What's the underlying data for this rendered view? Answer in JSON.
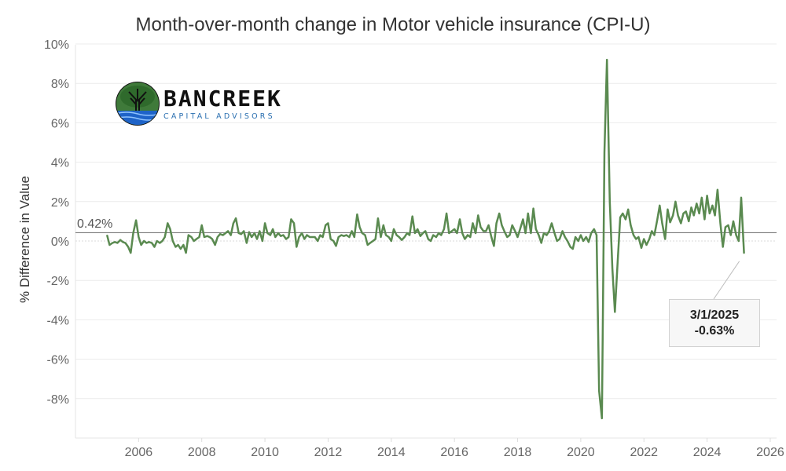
{
  "chart_data": {
    "type": "line",
    "title": "Month-over-month change in Motor vehicle insurance (CPI-U)",
    "ylabel": "% Difference in Value",
    "xlabel": "",
    "x_range": [
      2004.0,
      2026.2
    ],
    "ylim": [
      -10,
      10
    ],
    "y_ticks": [
      10,
      8,
      6,
      4,
      2,
      0,
      -2,
      -4,
      -6,
      -8
    ],
    "y_tick_labels": [
      "10%",
      "8%",
      "6%",
      "4%",
      "2%",
      "0%",
      "-2%",
      "-4%",
      "-6%",
      "-8%"
    ],
    "x_ticks": [
      2006,
      2008,
      2010,
      2012,
      2014,
      2016,
      2018,
      2020,
      2022,
      2024,
      2026
    ],
    "x_tick_labels": [
      "2006",
      "2008",
      "2010",
      "2012",
      "2014",
      "2016",
      "2018",
      "2020",
      "2022",
      "2024",
      "2026"
    ],
    "grid": true,
    "reference_line": {
      "value": 0.42,
      "label": "0.42%"
    },
    "annotation": {
      "date": "3/1/2025",
      "x": 2025.17,
      "y": -0.63,
      "value_label": "-0.63%"
    },
    "series": [
      {
        "color": "#5a8a50",
        "points": [
          [
            2005.0,
            0.3
          ],
          [
            2005.08,
            -0.2
          ],
          [
            2005.17,
            -0.1
          ],
          [
            2005.25,
            -0.05
          ],
          [
            2005.33,
            -0.1
          ],
          [
            2005.42,
            0.05
          ],
          [
            2005.5,
            -0.05
          ],
          [
            2005.58,
            -0.1
          ],
          [
            2005.67,
            -0.3
          ],
          [
            2005.75,
            -0.6
          ],
          [
            2005.83,
            0.4
          ],
          [
            2005.92,
            1.05
          ],
          [
            2006.0,
            0.2
          ],
          [
            2006.08,
            -0.2
          ],
          [
            2006.17,
            0.0
          ],
          [
            2006.25,
            -0.1
          ],
          [
            2006.33,
            -0.05
          ],
          [
            2006.42,
            -0.1
          ],
          [
            2006.5,
            -0.3
          ],
          [
            2006.58,
            0.0
          ],
          [
            2006.67,
            -0.1
          ],
          [
            2006.75,
            0.0
          ],
          [
            2006.83,
            0.2
          ],
          [
            2006.92,
            0.9
          ],
          [
            2007.0,
            0.6
          ],
          [
            2007.08,
            0.0
          ],
          [
            2007.17,
            -0.3
          ],
          [
            2007.25,
            -0.2
          ],
          [
            2007.33,
            -0.4
          ],
          [
            2007.42,
            -0.2
          ],
          [
            2007.5,
            -0.6
          ],
          [
            2007.58,
            0.3
          ],
          [
            2007.67,
            0.2
          ],
          [
            2007.75,
            0.0
          ],
          [
            2007.83,
            0.1
          ],
          [
            2007.92,
            0.2
          ],
          [
            2008.0,
            0.8
          ],
          [
            2008.08,
            0.2
          ],
          [
            2008.17,
            0.25
          ],
          [
            2008.25,
            0.2
          ],
          [
            2008.33,
            0.1
          ],
          [
            2008.42,
            -0.2
          ],
          [
            2008.5,
            0.2
          ],
          [
            2008.58,
            0.35
          ],
          [
            2008.67,
            0.3
          ],
          [
            2008.75,
            0.4
          ],
          [
            2008.83,
            0.5
          ],
          [
            2008.92,
            0.3
          ],
          [
            2009.0,
            0.9
          ],
          [
            2009.08,
            1.15
          ],
          [
            2009.17,
            0.4
          ],
          [
            2009.25,
            0.35
          ],
          [
            2009.33,
            0.5
          ],
          [
            2009.42,
            -0.1
          ],
          [
            2009.5,
            0.45
          ],
          [
            2009.58,
            0.2
          ],
          [
            2009.67,
            0.4
          ],
          [
            2009.75,
            0.1
          ],
          [
            2009.83,
            0.5
          ],
          [
            2009.92,
            0.0
          ],
          [
            2010.0,
            0.9
          ],
          [
            2010.08,
            0.4
          ],
          [
            2010.17,
            0.3
          ],
          [
            2010.25,
            0.6
          ],
          [
            2010.33,
            0.2
          ],
          [
            2010.42,
            0.4
          ],
          [
            2010.5,
            0.25
          ],
          [
            2010.58,
            0.3
          ],
          [
            2010.67,
            0.1
          ],
          [
            2010.75,
            0.2
          ],
          [
            2010.83,
            1.1
          ],
          [
            2010.92,
            0.9
          ],
          [
            2011.0,
            -0.3
          ],
          [
            2011.08,
            0.2
          ],
          [
            2011.17,
            0.4
          ],
          [
            2011.25,
            0.1
          ],
          [
            2011.33,
            0.3
          ],
          [
            2011.42,
            0.2
          ],
          [
            2011.5,
            0.2
          ],
          [
            2011.58,
            0.2
          ],
          [
            2011.67,
            0.0
          ],
          [
            2011.75,
            0.3
          ],
          [
            2011.83,
            0.2
          ],
          [
            2011.92,
            0.8
          ],
          [
            2012.0,
            0.9
          ],
          [
            2012.08,
            0.1
          ],
          [
            2012.17,
            0.0
          ],
          [
            2012.25,
            -0.25
          ],
          [
            2012.33,
            0.2
          ],
          [
            2012.42,
            0.3
          ],
          [
            2012.5,
            0.25
          ],
          [
            2012.58,
            0.3
          ],
          [
            2012.67,
            0.2
          ],
          [
            2012.75,
            0.5
          ],
          [
            2012.83,
            0.2
          ],
          [
            2012.92,
            1.35
          ],
          [
            2013.0,
            0.7
          ],
          [
            2013.08,
            0.4
          ],
          [
            2013.17,
            0.3
          ],
          [
            2013.25,
            -0.2
          ],
          [
            2013.33,
            -0.1
          ],
          [
            2013.42,
            0.0
          ],
          [
            2013.5,
            0.1
          ],
          [
            2013.58,
            1.15
          ],
          [
            2013.67,
            0.2
          ],
          [
            2013.75,
            0.8
          ],
          [
            2013.83,
            0.3
          ],
          [
            2013.92,
            0.2
          ],
          [
            2014.0,
            0.0
          ],
          [
            2014.08,
            0.6
          ],
          [
            2014.17,
            0.3
          ],
          [
            2014.25,
            0.2
          ],
          [
            2014.33,
            0.05
          ],
          [
            2014.42,
            0.2
          ],
          [
            2014.5,
            0.4
          ],
          [
            2014.58,
            0.3
          ],
          [
            2014.67,
            1.25
          ],
          [
            2014.75,
            0.4
          ],
          [
            2014.83,
            0.6
          ],
          [
            2014.92,
            0.25
          ],
          [
            2015.0,
            0.4
          ],
          [
            2015.08,
            0.5
          ],
          [
            2015.17,
            0.1
          ],
          [
            2015.25,
            0.0
          ],
          [
            2015.33,
            0.3
          ],
          [
            2015.42,
            0.2
          ],
          [
            2015.5,
            0.4
          ],
          [
            2015.58,
            0.3
          ],
          [
            2015.67,
            0.6
          ],
          [
            2015.75,
            1.4
          ],
          [
            2015.83,
            0.4
          ],
          [
            2015.92,
            0.5
          ],
          [
            2016.0,
            0.6
          ],
          [
            2016.08,
            0.4
          ],
          [
            2016.17,
            1.1
          ],
          [
            2016.25,
            0.4
          ],
          [
            2016.33,
            0.1
          ],
          [
            2016.42,
            0.3
          ],
          [
            2016.5,
            0.2
          ],
          [
            2016.58,
            0.9
          ],
          [
            2016.67,
            0.4
          ],
          [
            2016.75,
            1.3
          ],
          [
            2016.83,
            0.7
          ],
          [
            2016.92,
            0.5
          ],
          [
            2017.0,
            0.5
          ],
          [
            2017.08,
            0.8
          ],
          [
            2017.17,
            0.2
          ],
          [
            2017.25,
            -0.25
          ],
          [
            2017.33,
            0.9
          ],
          [
            2017.42,
            1.4
          ],
          [
            2017.5,
            0.8
          ],
          [
            2017.58,
            0.5
          ],
          [
            2017.67,
            0.2
          ],
          [
            2017.75,
            0.3
          ],
          [
            2017.83,
            0.8
          ],
          [
            2017.92,
            0.5
          ],
          [
            2018.0,
            0.2
          ],
          [
            2018.08,
            0.6
          ],
          [
            2018.17,
            1.1
          ],
          [
            2018.25,
            0.4
          ],
          [
            2018.33,
            1.4
          ],
          [
            2018.42,
            0.4
          ],
          [
            2018.5,
            1.65
          ],
          [
            2018.58,
            0.6
          ],
          [
            2018.67,
            0.3
          ],
          [
            2018.75,
            -0.1
          ],
          [
            2018.83,
            0.4
          ],
          [
            2018.92,
            0.3
          ],
          [
            2019.0,
            0.5
          ],
          [
            2019.08,
            0.9
          ],
          [
            2019.17,
            0.4
          ],
          [
            2019.25,
            0.0
          ],
          [
            2019.33,
            0.1
          ],
          [
            2019.42,
            0.5
          ],
          [
            2019.5,
            0.2
          ],
          [
            2019.58,
            0.0
          ],
          [
            2019.67,
            -0.3
          ],
          [
            2019.75,
            -0.4
          ],
          [
            2019.83,
            0.2
          ],
          [
            2019.92,
            0.0
          ],
          [
            2020.0,
            0.3
          ],
          [
            2020.08,
            0.0
          ],
          [
            2020.17,
            0.2
          ],
          [
            2020.25,
            -0.05
          ],
          [
            2020.33,
            0.4
          ],
          [
            2020.42,
            0.6
          ],
          [
            2020.5,
            0.3
          ],
          [
            2020.58,
            -7.6
          ],
          [
            2020.67,
            -9.0
          ],
          [
            2020.75,
            4.5
          ],
          [
            2020.83,
            9.2
          ],
          [
            2020.92,
            2.0
          ],
          [
            2021.0,
            -1.4
          ],
          [
            2021.08,
            -3.6
          ],
          [
            2021.17,
            -1.0
          ],
          [
            2021.25,
            1.2
          ],
          [
            2021.33,
            1.4
          ],
          [
            2021.42,
            1.1
          ],
          [
            2021.5,
            1.6
          ],
          [
            2021.58,
            0.8
          ],
          [
            2021.67,
            0.3
          ],
          [
            2021.75,
            0.1
          ],
          [
            2021.83,
            0.2
          ],
          [
            2021.92,
            -0.35
          ],
          [
            2022.0,
            0.1
          ],
          [
            2022.08,
            -0.2
          ],
          [
            2022.17,
            0.1
          ],
          [
            2022.25,
            0.5
          ],
          [
            2022.33,
            0.3
          ],
          [
            2022.42,
            1.05
          ],
          [
            2022.5,
            1.8
          ],
          [
            2022.58,
            0.9
          ],
          [
            2022.67,
            0.1
          ],
          [
            2022.75,
            1.6
          ],
          [
            2022.83,
            0.95
          ],
          [
            2022.92,
            1.3
          ],
          [
            2023.0,
            2.0
          ],
          [
            2023.08,
            1.3
          ],
          [
            2023.17,
            0.9
          ],
          [
            2023.25,
            1.4
          ],
          [
            2023.33,
            1.5
          ],
          [
            2023.42,
            1.0
          ],
          [
            2023.5,
            1.7
          ],
          [
            2023.58,
            1.3
          ],
          [
            2023.67,
            1.9
          ],
          [
            2023.75,
            1.4
          ],
          [
            2023.83,
            2.2
          ],
          [
            2023.92,
            1.1
          ],
          [
            2024.0,
            2.3
          ],
          [
            2024.08,
            1.4
          ],
          [
            2024.17,
            1.8
          ],
          [
            2024.25,
            1.3
          ],
          [
            2024.33,
            2.6
          ],
          [
            2024.42,
            0.9
          ],
          [
            2024.5,
            -0.3
          ],
          [
            2024.58,
            0.7
          ],
          [
            2024.67,
            0.8
          ],
          [
            2024.75,
            0.3
          ],
          [
            2024.83,
            1.0
          ],
          [
            2024.92,
            0.3
          ],
          [
            2025.0,
            0.0
          ],
          [
            2025.08,
            2.2
          ],
          [
            2025.17,
            -0.63
          ]
        ]
      }
    ]
  },
  "logo": {
    "name": "BANCREEK",
    "tagline": "CAPITAL ADVISORS"
  }
}
